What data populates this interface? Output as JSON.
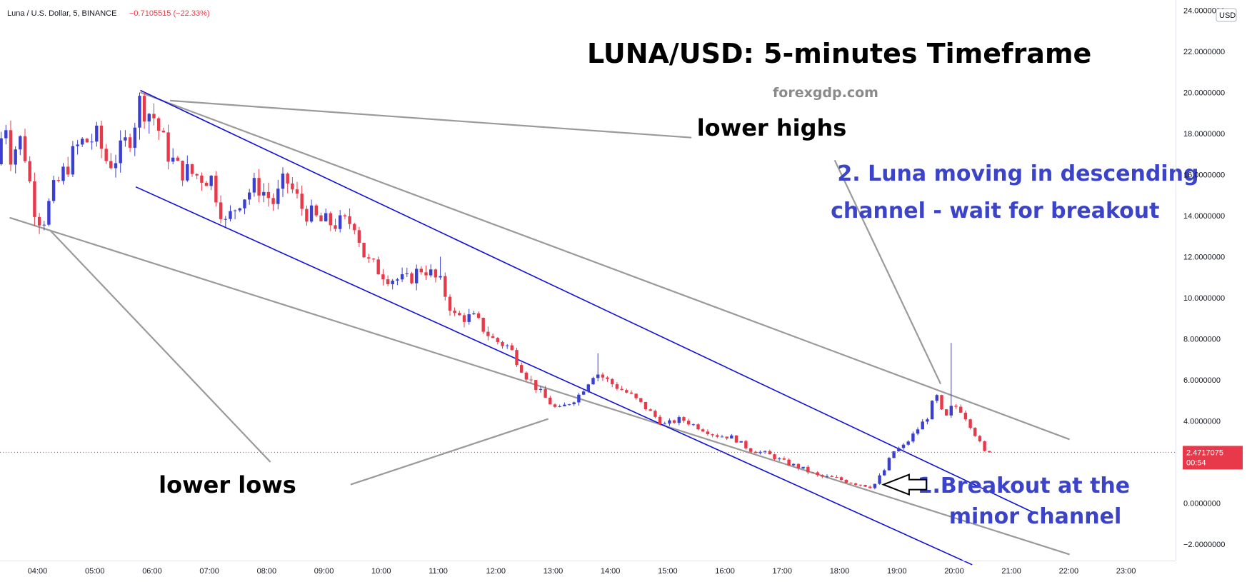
{
  "header": {
    "ticker": "Luna / U.S. Dollar, 5, BINANCE",
    "change": "−0.7105515 (−22.33%)"
  },
  "currency_badge": "USD",
  "price_box": {
    "price": "2.4717075",
    "countdown": "00:54",
    "value": 2.4717075
  },
  "colors": {
    "up": "#3b3fd0",
    "down": "#e8394a",
    "channel": "#1010d8",
    "trend": "#9a9a9a",
    "current_price": "#e8394a"
  },
  "chart_data": {
    "type": "candlestick",
    "title": "LUNA/USD: 5-minutes Timeframe",
    "subtitle": "forexgdp.com",
    "xlabel": "",
    "ylabel": "",
    "ylim": [
      -2.8,
      24.5
    ],
    "y_ticks": [
      "24.0000000",
      "22.0000000",
      "20.0000000",
      "18.0000000",
      "16.0000000",
      "14.0000000",
      "12.0000000",
      "10.0000000",
      "8.0000000",
      "6.0000000",
      "4.0000000",
      "2.0000000",
      "0.0000000",
      "−2.0000000"
    ],
    "y_tick_values": [
      24,
      22,
      20,
      18,
      16,
      14,
      12,
      10,
      8,
      6,
      4,
      2,
      0,
      -2
    ],
    "x_ticks": [
      "04:00",
      "05:00",
      "06:00",
      "07:00",
      "08:00",
      "09:00",
      "10:00",
      "11:00",
      "12:00",
      "13:00",
      "14:00",
      "15:00",
      "16:00",
      "17:00",
      "18:00",
      "19:00",
      "20:00",
      "21:00",
      "22:00",
      "23:00"
    ],
    "x_tick_hours": [
      4,
      5,
      6,
      7,
      8,
      9,
      10,
      11,
      12,
      13,
      14,
      15,
      16,
      17,
      18,
      19,
      20,
      21,
      22,
      23
    ],
    "xlim": [
      3.33,
      23.85
    ],
    "price_anchors": [
      [
        3.35,
        16.5
      ],
      [
        3.5,
        18.8
      ],
      [
        3.6,
        17.0
      ],
      [
        3.8,
        17.8
      ],
      [
        4.0,
        14.5
      ],
      [
        4.15,
        13.6
      ],
      [
        4.35,
        15.2
      ],
      [
        4.6,
        16.5
      ],
      [
        4.8,
        17.5
      ],
      [
        5.1,
        17.8
      ],
      [
        5.3,
        16.5
      ],
      [
        5.5,
        17.0
      ],
      [
        5.7,
        18.0
      ],
      [
        5.85,
        19.5
      ],
      [
        6.1,
        18.8
      ],
      [
        6.3,
        17.3
      ],
      [
        6.5,
        16.3
      ],
      [
        6.8,
        16.0
      ],
      [
        7.1,
        15.8
      ],
      [
        7.35,
        13.6
      ],
      [
        7.6,
        14.8
      ],
      [
        7.9,
        15.5
      ],
      [
        8.2,
        14.6
      ],
      [
        8.4,
        15.8
      ],
      [
        8.7,
        14.3
      ],
      [
        9.0,
        13.7
      ],
      [
        9.3,
        13.6
      ],
      [
        9.6,
        13.7
      ],
      [
        9.8,
        11.8
      ],
      [
        10.2,
        11.0
      ],
      [
        10.5,
        10.8
      ],
      [
        10.8,
        11.5
      ],
      [
        11.1,
        10.7
      ],
      [
        11.35,
        9.1
      ],
      [
        11.7,
        9.0
      ],
      [
        12.0,
        8.0
      ],
      [
        12.3,
        7.6
      ],
      [
        12.6,
        6.2
      ],
      [
        12.9,
        5.2
      ],
      [
        13.15,
        4.5
      ],
      [
        13.5,
        5.2
      ],
      [
        13.8,
        6.4
      ],
      [
        14.1,
        5.8
      ],
      [
        14.4,
        5.3
      ],
      [
        14.7,
        4.6
      ],
      [
        15.0,
        3.8
      ],
      [
        15.3,
        4.1
      ],
      [
        15.6,
        3.7
      ],
      [
        15.9,
        3.3
      ],
      [
        16.2,
        3.2
      ],
      [
        16.5,
        2.6
      ],
      [
        16.8,
        2.4
      ],
      [
        17.1,
        2.0
      ],
      [
        17.4,
        1.7
      ],
      [
        17.7,
        1.3
      ],
      [
        18.0,
        1.2
      ],
      [
        18.3,
        1.0
      ],
      [
        18.65,
        0.8
      ],
      [
        18.85,
        1.6
      ],
      [
        19.0,
        2.5
      ],
      [
        19.2,
        2.8
      ],
      [
        19.4,
        3.5
      ],
      [
        19.6,
        4.2
      ],
      [
        19.75,
        5.3
      ],
      [
        19.9,
        4.0
      ],
      [
        20.05,
        4.8
      ],
      [
        20.2,
        4.5
      ],
      [
        20.35,
        3.8
      ],
      [
        20.5,
        3.0
      ],
      [
        20.6,
        2.47
      ]
    ],
    "spikes": [
      [
        19.9,
        7.8
      ],
      [
        5.75,
        19.4
      ],
      [
        8.35,
        16.1
      ],
      [
        13.75,
        7.3
      ],
      [
        11.05,
        12.0
      ]
    ],
    "trendlines": [
      {
        "name": "upper-trendline",
        "kind": "trend",
        "p1": [
          5.78,
          20.0
        ],
        "p2": [
          22.0,
          3.1
        ]
      },
      {
        "name": "lower-trendline",
        "kind": "trend",
        "p1": [
          3.5,
          13.9
        ],
        "p2": [
          22.0,
          -2.5
        ]
      },
      {
        "name": "channel-upper",
        "kind": "channel",
        "p1": [
          5.78,
          20.1
        ],
        "p2": [
          21.4,
          -0.5
        ]
      },
      {
        "name": "channel-lower",
        "kind": "channel",
        "p1": [
          5.7,
          15.4
        ],
        "p2": [
          20.3,
          -3.0
        ]
      },
      {
        "name": "lower-highs-pointer",
        "kind": "trend",
        "p1": [
          6.3,
          19.6
        ],
        "p2": [
          15.4,
          17.8
        ]
      },
      {
        "name": "lower-highs-pointer-2",
        "kind": "trend",
        "p1": [
          17.9,
          16.7
        ],
        "p2": [
          19.75,
          5.8
        ]
      },
      {
        "name": "lower-lows-pointer",
        "kind": "trend",
        "p1": [
          4.2,
          13.3
        ],
        "p2": [
          8.05,
          2.0
        ]
      },
      {
        "name": "lower-lows-pointer-2",
        "kind": "trend",
        "p1": [
          9.45,
          0.9
        ],
        "p2": [
          12.9,
          4.1
        ]
      }
    ],
    "annotations": [
      {
        "name": "label-lower-highs",
        "text": "lower highs",
        "style": "black",
        "x": 16.8,
        "y": 17.9
      },
      {
        "name": "label-lower-lows",
        "text": "lower lows",
        "style": "black",
        "x": 7.3,
        "y": 0.5
      },
      {
        "name": "label-channel-line1",
        "text": "2. Luna moving in descending",
        "style": "blue",
        "x": 21.1,
        "y": 15.7
      },
      {
        "name": "label-channel-line2",
        "text": "channel - wait for breakout",
        "style": "blue",
        "x": 20.7,
        "y": 13.9
      },
      {
        "name": "label-breakout-line1",
        "text": "1.Breakout at the",
        "style": "blue",
        "x": 21.2,
        "y": 0.5
      },
      {
        "name": "label-breakout-line2",
        "text": "minor channel",
        "style": "blue",
        "x": 21.4,
        "y": -1.0
      }
    ],
    "arrow": {
      "name": "breakout-arrow",
      "tip": [
        18.75,
        0.9
      ],
      "tail": [
        19.5,
        0.9
      ]
    }
  }
}
